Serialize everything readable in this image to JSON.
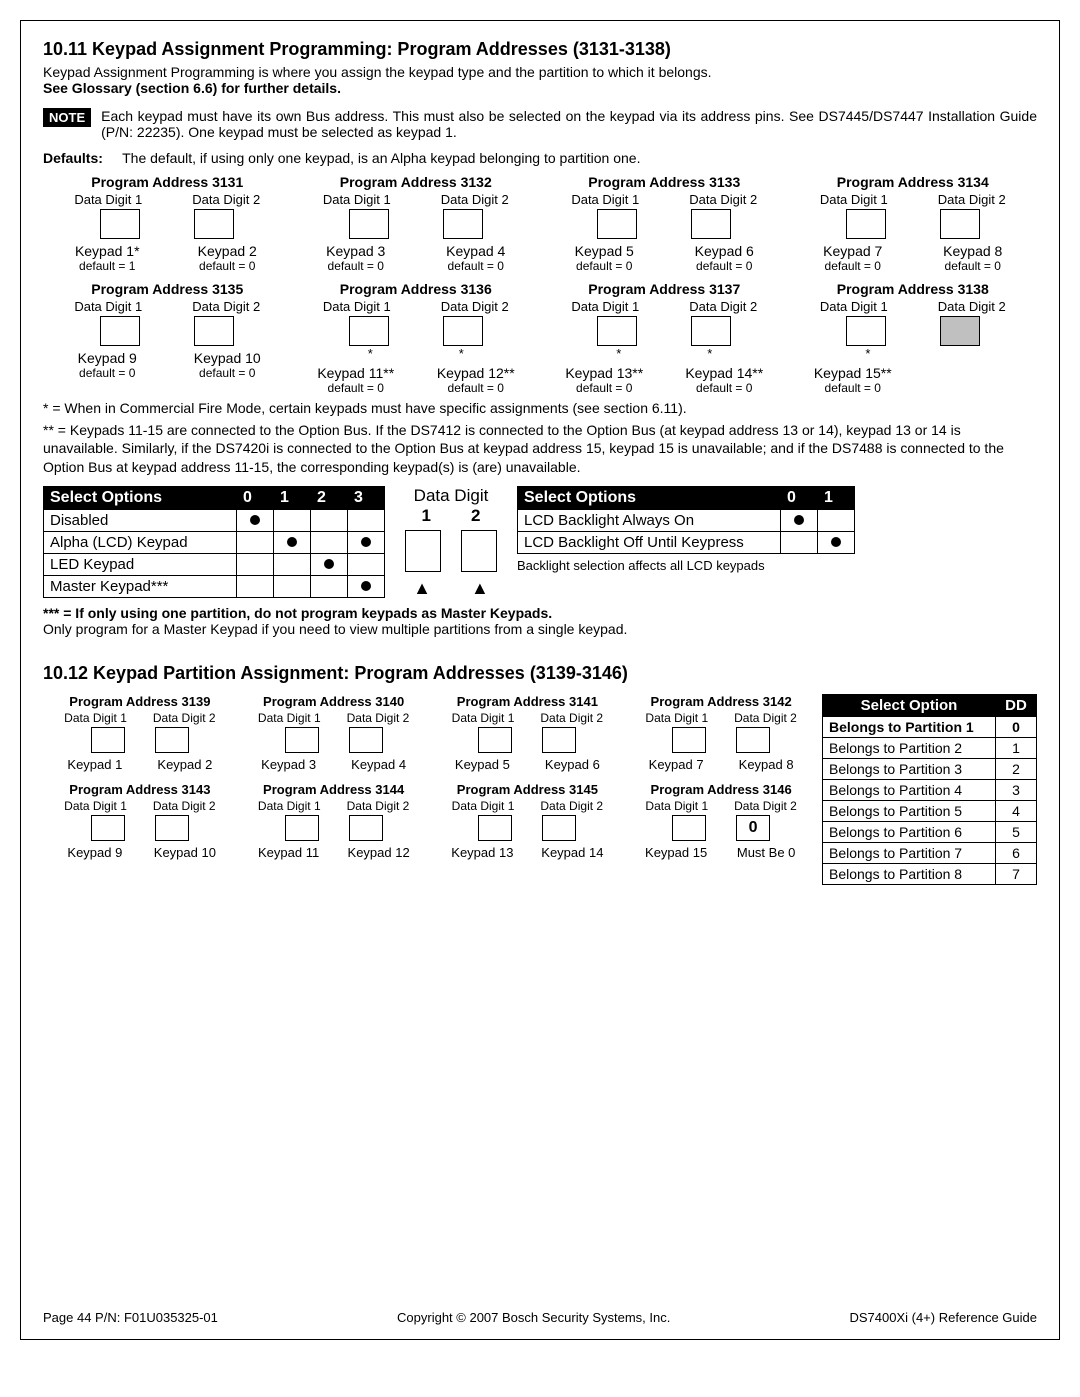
{
  "section1": {
    "heading": "10.11  Keypad Assignment Programming: Program Addresses (3131-3138)",
    "intro1": "Keypad Assignment Programming is where you assign the keypad type and the partition to which it belongs.",
    "intro2": "See Glossary (section 6.6) for further details.",
    "note_badge": "NOTE",
    "note_text": "Each keypad must have its own Bus address. This must also be selected on the keypad via its address pins. See DS7445/DS7447 Installation Guide (P/N: 22235). One keypad must be selected as keypad 1.",
    "defaults_label": "Defaults:",
    "defaults_text": "The default, if using only one keypad, is an Alpha keypad belonging to partition one."
  },
  "row1": [
    {
      "title": "Program Address 3131",
      "dd1": "Data Digit 1",
      "dd2": "Data Digit 2",
      "kp1": "Keypad 1*",
      "kp2": "Keypad 2",
      "def1": "default = 1",
      "def2": "default = 0",
      "star1": "",
      "star2": ""
    },
    {
      "title": "Program Address 3132",
      "dd1": "Data Digit 1",
      "dd2": "Data Digit 2",
      "kp1": "Keypad 3",
      "kp2": "Keypad 4",
      "def1": "default = 0",
      "def2": "default = 0",
      "star1": "",
      "star2": ""
    },
    {
      "title": "Program Address 3133",
      "dd1": "Data Digit 1",
      "dd2": "Data Digit 2",
      "kp1": "Keypad 5",
      "kp2": "Keypad 6",
      "def1": "default = 0",
      "def2": "default = 0",
      "star1": "",
      "star2": ""
    },
    {
      "title": "Program Address 3134",
      "dd1": "Data Digit 1",
      "dd2": "Data Digit 2",
      "kp1": "Keypad 7",
      "kp2": "Keypad 8",
      "def1": "default = 0",
      "def2": "default = 0",
      "star1": "",
      "star2": ""
    }
  ],
  "row2": [
    {
      "title": "Program Address 3135",
      "dd1": "Data Digit 1",
      "dd2": "Data Digit 2",
      "kp1": "Keypad 9",
      "kp2": "Keypad 10",
      "def1": "default = 0",
      "def2": "default = 0",
      "star1": "",
      "star2": "",
      "grey": false
    },
    {
      "title": "Program Address 3136",
      "dd1": "Data Digit 1",
      "dd2": "Data Digit 2",
      "kp1": "Keypad 11**",
      "kp2": "Keypad 12**",
      "def1": "default = 0",
      "def2": "default = 0",
      "star1": "*",
      "star2": "*",
      "grey": false
    },
    {
      "title": "Program Address 3137",
      "dd1": "Data Digit 1",
      "dd2": "Data Digit 2",
      "kp1": "Keypad 13**",
      "kp2": "Keypad 14**",
      "def1": "default = 0",
      "def2": "default = 0",
      "star1": "*",
      "star2": "*",
      "grey": false
    },
    {
      "title": "Program Address 3138",
      "dd1": "Data Digit 1",
      "dd2": "Data Digit 2",
      "kp1": "Keypad 15**",
      "kp2": "",
      "def1": "default = 0",
      "def2": "",
      "star1": "*",
      "star2": "",
      "grey": true
    }
  ],
  "star_note1": "* = When in Commercial Fire Mode, certain keypads must have specific assignments (see section 6.11).",
  "star_note2": "** = Keypads 11-15 are connected to the Option Bus. If the DS7412 is connected to the Option Bus (at keypad address 13 or 14), keypad 13 or 14 is unavailable. Similarly, if the DS7420i is connected to the Option Bus at keypad address 15, keypad 15 is unavailable; and if the DS7488 is connected to the Option Bus at keypad address 11-15, the corresponding keypad(s) is (are) unavailable.",
  "opt_table1": {
    "header": [
      "Select Options",
      "0",
      "1",
      "2",
      "3"
    ],
    "rows": [
      {
        "label": "Disabled",
        "cells": [
          true,
          false,
          false,
          false
        ]
      },
      {
        "label": "Alpha (LCD) Keypad",
        "cells": [
          false,
          true,
          false,
          true
        ]
      },
      {
        "label": "LED Keypad",
        "cells": [
          false,
          false,
          true,
          false
        ]
      },
      {
        "label": "Master Keypad***",
        "cells": [
          false,
          false,
          false,
          true
        ]
      }
    ]
  },
  "dd_center": {
    "title": "Data Digit",
    "c1": "1",
    "c2": "2"
  },
  "opt_table2": {
    "header": [
      "Select Options",
      "0",
      "1"
    ],
    "rows": [
      {
        "label": "LCD Backlight Always On",
        "cells": [
          true,
          false
        ]
      },
      {
        "label": "LCD Backlight Off Until Keypress",
        "cells": [
          false,
          true
        ]
      }
    ],
    "caption": "Backlight selection affects all LCD keypads"
  },
  "notes2a": "*** = If only using one partition, do not program keypads as Master Keypads.",
  "notes2b": "Only program for a Master Keypad if you need to view multiple partitions from a single keypad.",
  "section2_heading": "10.12 Keypad Partition Assignment: Program Addresses (3139-3146)",
  "prow1": [
    {
      "title": "Program Address 3139",
      "kp1": "Keypad 1",
      "kp2": "Keypad 2"
    },
    {
      "title": "Program Address 3140",
      "kp1": "Keypad 3",
      "kp2": "Keypad 4"
    },
    {
      "title": "Program Address 3141",
      "kp1": "Keypad 5",
      "kp2": "Keypad 6"
    },
    {
      "title": "Program Address 3142",
      "kp1": "Keypad 7",
      "kp2": "Keypad 8"
    }
  ],
  "prow2": [
    {
      "title": "Program Address 3143",
      "kp1": "Keypad 9",
      "kp2": "Keypad 10",
      "val2": ""
    },
    {
      "title": "Program Address 3144",
      "kp1": "Keypad 11",
      "kp2": "Keypad 12",
      "val2": ""
    },
    {
      "title": "Program Address 3145",
      "kp1": "Keypad 13",
      "kp2": "Keypad 14",
      "val2": ""
    },
    {
      "title": "Program Address 3146",
      "kp1": "Keypad 15",
      "kp2": "Must Be 0",
      "val2": "0"
    }
  ],
  "dd_lbl1": "Data Digit 1",
  "dd_lbl2": "Data Digit 2",
  "part_table": {
    "header": [
      "Select Option",
      "DD"
    ],
    "rows": [
      [
        "Belongs to Partition 1",
        "0"
      ],
      [
        "Belongs to Partition 2",
        "1"
      ],
      [
        "Belongs to Partition 3",
        "2"
      ],
      [
        "Belongs to Partition 4",
        "3"
      ],
      [
        "Belongs to Partition 5",
        "4"
      ],
      [
        "Belongs to Partition 6",
        "5"
      ],
      [
        "Belongs to Partition 7",
        "6"
      ],
      [
        "Belongs to Partition 8",
        "7"
      ]
    ],
    "bold_row": 0
  },
  "footer": {
    "left": "Page 44    P/N: F01U035325-01",
    "center": "Copyright © 2007 Bosch Security Systems, Inc.",
    "right": "DS7400Xi (4+) Reference Guide"
  }
}
